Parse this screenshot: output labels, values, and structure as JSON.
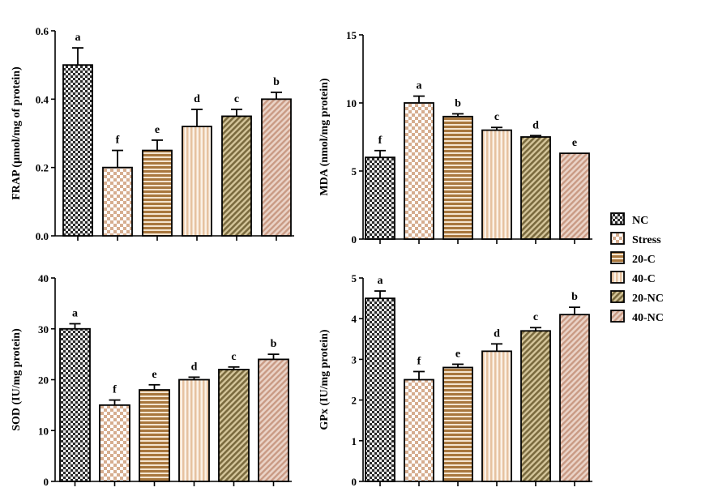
{
  "colors": {
    "nc_dark": "#2b2b2b",
    "nc_light": "#e9e9e9",
    "stress": "#d6ad8f",
    "c20": "#a8773e",
    "c40": "#e6c2a0",
    "nc20": "#7a6a3e",
    "nc40": "#c99a84"
  },
  "legend": {
    "position": "right",
    "items": [
      {
        "label": "NC",
        "pattern": "checker-dark"
      },
      {
        "label": "Stress",
        "pattern": "checker-light"
      },
      {
        "label": "20-C",
        "pattern": "horizontal-stripes"
      },
      {
        "label": "40-C",
        "pattern": "vertical-stripes"
      },
      {
        "label": "20-NC",
        "pattern": "diagonal-dark"
      },
      {
        "label": "40-NC",
        "pattern": "diagonal-light"
      }
    ]
  },
  "chart_data": [
    {
      "type": "bar",
      "panel": "top-left",
      "categories": [
        "NC",
        "Stress",
        "20-C",
        "40-C",
        "20-NC",
        "40-NC"
      ],
      "values": [
        0.5,
        0.2,
        0.25,
        0.32,
        0.35,
        0.4
      ],
      "errors": [
        0.05,
        0.05,
        0.03,
        0.05,
        0.02,
        0.02
      ],
      "labels": [
        "a",
        "f",
        "e",
        "d",
        "c",
        "b"
      ],
      "ylabel": "FRAP (µmol/mg of protein)",
      "ylim": [
        0,
        0.6
      ],
      "yticks": [
        "0.0",
        "0.2",
        "0.4",
        "0.6"
      ]
    },
    {
      "type": "bar",
      "panel": "top-right",
      "categories": [
        "NC",
        "Stress",
        "20-C",
        "40-C",
        "20-NC",
        "40-NC"
      ],
      "values": [
        6,
        10,
        9,
        8,
        7.5,
        6.3
      ],
      "errors": [
        0.5,
        0.5,
        0.2,
        0.2,
        0.1,
        0
      ],
      "labels": [
        "f",
        "a",
        "b",
        "c",
        "d",
        "e"
      ],
      "ylabel": "MDA (nmol/mg protein)",
      "ylim": [
        0,
        15
      ],
      "yticks": [
        "0",
        "5",
        "10",
        "15"
      ]
    },
    {
      "type": "bar",
      "panel": "bottom-left",
      "categories": [
        "NC",
        "Stress",
        "20-C",
        "40-C",
        "20-NC",
        "40-NC"
      ],
      "values": [
        30,
        15,
        18,
        20,
        22,
        24
      ],
      "errors": [
        1,
        1,
        1,
        0.5,
        0.5,
        1
      ],
      "labels": [
        "a",
        "f",
        "e",
        "d",
        "c",
        "b"
      ],
      "ylabel": "SOD (IU/mg protein)",
      "ylim": [
        0,
        40
      ],
      "yticks": [
        "0",
        "10",
        "20",
        "30",
        "40"
      ]
    },
    {
      "type": "bar",
      "panel": "bottom-right",
      "categories": [
        "NC",
        "Stress",
        "20-C",
        "40-C",
        "20-NC",
        "40-NC"
      ],
      "values": [
        4.5,
        2.5,
        2.8,
        3.2,
        3.7,
        4.1
      ],
      "errors": [
        0.18,
        0.2,
        0.08,
        0.18,
        0.08,
        0.18
      ],
      "labels": [
        "a",
        "f",
        "e",
        "d",
        "c",
        "b"
      ],
      "ylabel": "GPx (IU/mg protein)",
      "ylim": [
        0,
        5
      ],
      "yticks": [
        "0",
        "1",
        "2",
        "3",
        "4",
        "5"
      ]
    }
  ]
}
